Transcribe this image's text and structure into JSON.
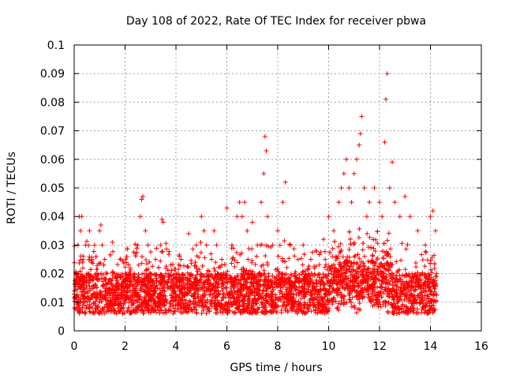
{
  "chart_data": {
    "type": "scatter",
    "title": "Day 108 of 2022, Rate Of TEC Index for receiver pbwa",
    "xlabel": "GPS time / hours",
    "ylabel": "ROTI / TECUs",
    "xlim": [
      0,
      16
    ],
    "ylim": [
      0,
      0.1
    ],
    "xticks": [
      "0",
      "2",
      "4",
      "6",
      "8",
      "10",
      "12",
      "14",
      "16"
    ],
    "yticks": [
      "0",
      "0.01",
      "0.02",
      "0.03",
      "0.04",
      "0.05",
      "0.06",
      "0.07",
      "0.08",
      "0.09",
      "0.1"
    ],
    "grid": true,
    "marker": "+",
    "color": "#ff0000",
    "data_x_range": [
      0,
      14.25
    ],
    "points": [
      [
        0.05,
        0.012
      ],
      [
        0.1,
        0.02
      ],
      [
        0.15,
        0.03
      ],
      [
        0.2,
        0.04
      ],
      [
        0.25,
        0.035
      ],
      [
        0.3,
        0.04
      ],
      [
        0.35,
        0.025
      ],
      [
        0.4,
        0.015
      ],
      [
        0.45,
        0.03
      ],
      [
        0.5,
        0.02
      ],
      [
        0.6,
        0.035
      ],
      [
        0.7,
        0.025
      ],
      [
        0.8,
        0.03
      ],
      [
        0.9,
        0.02
      ],
      [
        1.0,
        0.035
      ],
      [
        1.05,
        0.037
      ],
      [
        1.1,
        0.03
      ],
      [
        1.2,
        0.025
      ],
      [
        1.3,
        0.02
      ],
      [
        1.5,
        0.031
      ],
      [
        1.6,
        0.02
      ],
      [
        1.8,
        0.025
      ],
      [
        2.0,
        0.02
      ],
      [
        2.1,
        0.015
      ],
      [
        2.2,
        0.022
      ],
      [
        2.4,
        0.027
      ],
      [
        2.5,
        0.03
      ],
      [
        2.6,
        0.04
      ],
      [
        2.65,
        0.046
      ],
      [
        2.7,
        0.047
      ],
      [
        2.8,
        0.035
      ],
      [
        2.9,
        0.03
      ],
      [
        3.0,
        0.02
      ],
      [
        3.2,
        0.025
      ],
      [
        3.4,
        0.03
      ],
      [
        3.45,
        0.039
      ],
      [
        3.5,
        0.038
      ],
      [
        3.6,
        0.02
      ],
      [
        3.8,
        0.015
      ],
      [
        4.0,
        0.02
      ],
      [
        4.2,
        0.025
      ],
      [
        4.5,
        0.034
      ],
      [
        4.8,
        0.03
      ],
      [
        5.0,
        0.04
      ],
      [
        5.1,
        0.035
      ],
      [
        5.2,
        0.03
      ],
      [
        5.4,
        0.025
      ],
      [
        5.5,
        0.035
      ],
      [
        5.6,
        0.03
      ],
      [
        5.8,
        0.025
      ],
      [
        6.0,
        0.043
      ],
      [
        6.2,
        0.03
      ],
      [
        6.4,
        0.04
      ],
      [
        6.5,
        0.045
      ],
      [
        6.6,
        0.04
      ],
      [
        6.7,
        0.045
      ],
      [
        6.8,
        0.035
      ],
      [
        7.0,
        0.038
      ],
      [
        7.2,
        0.03
      ],
      [
        7.35,
        0.045
      ],
      [
        7.45,
        0.055
      ],
      [
        7.5,
        0.068
      ],
      [
        7.55,
        0.063
      ],
      [
        7.6,
        0.04
      ],
      [
        7.8,
        0.03
      ],
      [
        8.0,
        0.035
      ],
      [
        8.2,
        0.045
      ],
      [
        8.3,
        0.052
      ],
      [
        8.5,
        0.03
      ],
      [
        8.8,
        0.025
      ],
      [
        9.0,
        0.03
      ],
      [
        9.3,
        0.025
      ],
      [
        9.5,
        0.028
      ],
      [
        9.8,
        0.032
      ],
      [
        10.0,
        0.04
      ],
      [
        10.2,
        0.035
      ],
      [
        10.4,
        0.045
      ],
      [
        10.5,
        0.05
      ],
      [
        10.6,
        0.055
      ],
      [
        10.7,
        0.06
      ],
      [
        10.8,
        0.05
      ],
      [
        10.9,
        0.045
      ],
      [
        11.0,
        0.055
      ],
      [
        11.1,
        0.06
      ],
      [
        11.2,
        0.065
      ],
      [
        11.25,
        0.069
      ],
      [
        11.3,
        0.075
      ],
      [
        11.4,
        0.05
      ],
      [
        11.5,
        0.04
      ],
      [
        11.6,
        0.045
      ],
      [
        11.8,
        0.05
      ],
      [
        12.0,
        0.045
      ],
      [
        12.1,
        0.04
      ],
      [
        12.2,
        0.066
      ],
      [
        12.25,
        0.081
      ],
      [
        12.3,
        0.09
      ],
      [
        12.4,
        0.05
      ],
      [
        12.5,
        0.059
      ],
      [
        12.6,
        0.045
      ],
      [
        12.8,
        0.04
      ],
      [
        13.0,
        0.047
      ],
      [
        13.2,
        0.04
      ],
      [
        13.5,
        0.035
      ],
      [
        13.8,
        0.03
      ],
      [
        14.0,
        0.04
      ],
      [
        14.1,
        0.042
      ],
      [
        14.2,
        0.035
      ],
      [
        14.25,
        0.02
      ]
    ]
  }
}
